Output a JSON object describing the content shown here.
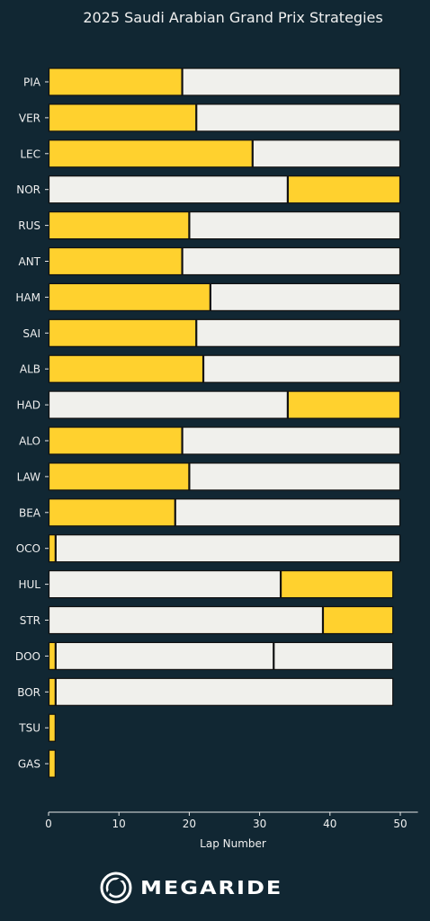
{
  "chart_data": {
    "type": "bar",
    "orientation": "horizontal-stacked",
    "title": "2025 Saudi Arabian Grand Prix Strategies",
    "xlabel": "Lap Number",
    "ylabel": "",
    "xlim": [
      0,
      52.5
    ],
    "xticks": [
      0,
      10,
      20,
      30,
      40,
      50
    ],
    "grid": false,
    "compound_colors": {
      "MEDIUM": "#FFD12E",
      "HARD": "#F0F0EC"
    },
    "drivers": [
      {
        "driver": "PIA",
        "stints": [
          {
            "compound": "MEDIUM",
            "start": 0,
            "end": 19
          },
          {
            "compound": "HARD",
            "start": 19,
            "end": 50
          }
        ]
      },
      {
        "driver": "VER",
        "stints": [
          {
            "compound": "MEDIUM",
            "start": 0,
            "end": 21
          },
          {
            "compound": "HARD",
            "start": 21,
            "end": 50
          }
        ]
      },
      {
        "driver": "LEC",
        "stints": [
          {
            "compound": "MEDIUM",
            "start": 0,
            "end": 29
          },
          {
            "compound": "HARD",
            "start": 29,
            "end": 50
          }
        ]
      },
      {
        "driver": "NOR",
        "stints": [
          {
            "compound": "HARD",
            "start": 0,
            "end": 34
          },
          {
            "compound": "MEDIUM",
            "start": 34,
            "end": 50
          }
        ]
      },
      {
        "driver": "RUS",
        "stints": [
          {
            "compound": "MEDIUM",
            "start": 0,
            "end": 20
          },
          {
            "compound": "HARD",
            "start": 20,
            "end": 50
          }
        ]
      },
      {
        "driver": "ANT",
        "stints": [
          {
            "compound": "MEDIUM",
            "start": 0,
            "end": 19
          },
          {
            "compound": "HARD",
            "start": 19,
            "end": 50
          }
        ]
      },
      {
        "driver": "HAM",
        "stints": [
          {
            "compound": "MEDIUM",
            "start": 0,
            "end": 23
          },
          {
            "compound": "HARD",
            "start": 23,
            "end": 50
          }
        ]
      },
      {
        "driver": "SAI",
        "stints": [
          {
            "compound": "MEDIUM",
            "start": 0,
            "end": 21
          },
          {
            "compound": "HARD",
            "start": 21,
            "end": 50
          }
        ]
      },
      {
        "driver": "ALB",
        "stints": [
          {
            "compound": "MEDIUM",
            "start": 0,
            "end": 22
          },
          {
            "compound": "HARD",
            "start": 22,
            "end": 50
          }
        ]
      },
      {
        "driver": "HAD",
        "stints": [
          {
            "compound": "HARD",
            "start": 0,
            "end": 34
          },
          {
            "compound": "MEDIUM",
            "start": 34,
            "end": 50
          }
        ]
      },
      {
        "driver": "ALO",
        "stints": [
          {
            "compound": "MEDIUM",
            "start": 0,
            "end": 19
          },
          {
            "compound": "HARD",
            "start": 19,
            "end": 50
          }
        ]
      },
      {
        "driver": "LAW",
        "stints": [
          {
            "compound": "MEDIUM",
            "start": 0,
            "end": 20
          },
          {
            "compound": "HARD",
            "start": 20,
            "end": 50
          }
        ]
      },
      {
        "driver": "BEA",
        "stints": [
          {
            "compound": "MEDIUM",
            "start": 0,
            "end": 18
          },
          {
            "compound": "HARD",
            "start": 18,
            "end": 50
          }
        ]
      },
      {
        "driver": "OCO",
        "stints": [
          {
            "compound": "MEDIUM",
            "start": 0,
            "end": 1
          },
          {
            "compound": "HARD",
            "start": 1,
            "end": 50
          }
        ]
      },
      {
        "driver": "HUL",
        "stints": [
          {
            "compound": "HARD",
            "start": 0,
            "end": 33
          },
          {
            "compound": "MEDIUM",
            "start": 33,
            "end": 49
          }
        ]
      },
      {
        "driver": "STR",
        "stints": [
          {
            "compound": "HARD",
            "start": 0,
            "end": 39
          },
          {
            "compound": "MEDIUM",
            "start": 39,
            "end": 49
          }
        ]
      },
      {
        "driver": "DOO",
        "stints": [
          {
            "compound": "MEDIUM",
            "start": 0,
            "end": 1
          },
          {
            "compound": "HARD",
            "start": 1,
            "end": 32
          },
          {
            "compound": "HARD",
            "start": 32,
            "end": 49
          }
        ]
      },
      {
        "driver": "BOR",
        "stints": [
          {
            "compound": "MEDIUM",
            "start": 0,
            "end": 1
          },
          {
            "compound": "HARD",
            "start": 1,
            "end": 49
          }
        ]
      },
      {
        "driver": "TSU",
        "stints": [
          {
            "compound": "MEDIUM",
            "start": 0,
            "end": 1
          }
        ]
      },
      {
        "driver": "GAS",
        "stints": [
          {
            "compound": "MEDIUM",
            "start": 0,
            "end": 1
          }
        ]
      }
    ]
  },
  "branding": {
    "logo_text": "MEGARIDE"
  },
  "colors": {
    "background": "#112733",
    "text": "#f0f0f0",
    "bar_edge": "#111111"
  }
}
